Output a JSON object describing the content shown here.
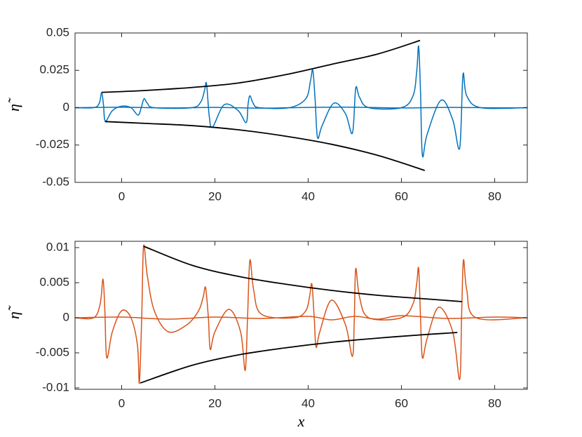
{
  "chart_data": [
    {
      "type": "line",
      "ylabel": "η̃",
      "xlim": [
        -10,
        87
      ],
      "ylim": [
        -0.05,
        0.05
      ],
      "xticks": [
        0,
        20,
        40,
        60,
        80
      ],
      "yticks": [
        -0.05,
        -0.025,
        0,
        0.025,
        0.05
      ],
      "series": [
        {
          "color": "#0072bd",
          "x": [
            -10,
            0,
            10,
            20,
            30,
            40,
            50,
            60,
            70,
            80,
            87
          ],
          "values": [
            0,
            0.0003,
            -0.0002,
            0.0002,
            -0.0003,
            0.0002,
            0.0003,
            -0.0002,
            0.0002,
            -0.0001,
            0
          ]
        },
        {
          "color": "#0072bd",
          "x": [
            -10,
            -6,
            -4.8,
            -4.3,
            -3.9,
            -3.5,
            -2,
            0,
            2,
            3.5,
            4.2,
            4.8,
            5.5,
            7,
            15,
            17,
            17.8,
            18.2,
            18.8,
            19.5,
            22,
            25,
            26.7,
            27.1,
            27.5,
            28.2,
            29.5,
            36,
            39.5,
            40.5,
            41,
            41.5,
            42,
            43,
            45.5,
            48,
            49.5,
            50.2,
            51,
            53,
            60,
            62.5,
            63.3,
            63.7,
            64.1,
            64.5,
            65.5,
            68.5,
            71,
            72.5,
            73.2,
            74,
            77,
            87
          ],
          "values": [
            0,
            0,
            0.003,
            0.01,
            0.002,
            -0.009,
            -0.002,
            0.001,
            0,
            -0.005,
            0,
            0.006,
            0.003,
            0,
            0,
            0.004,
            0.012,
            0.016,
            -0.006,
            -0.013,
            0.002,
            -0.002,
            -0.01,
            0.002,
            0.008,
            0.003,
            0,
            0,
            0.006,
            0.018,
            0.025,
            0.005,
            -0.02,
            -0.012,
            0.003,
            -0.004,
            -0.017,
            0.013,
            0.007,
            0,
            0,
            0.008,
            0.025,
            0.041,
            0.01,
            -0.032,
            -0.018,
            0.005,
            -0.008,
            -0.027,
            0.022,
            0.008,
            0,
            0
          ]
        },
        {
          "color": "#000000",
          "x": [
            -4.3,
            5,
            15,
            25,
            35,
            45,
            55,
            64
          ],
          "values": [
            0.0102,
            0.0115,
            0.0135,
            0.0165,
            0.022,
            0.029,
            0.036,
            0.045
          ]
        },
        {
          "color": "#000000",
          "x": [
            -3.6,
            5,
            15,
            25,
            35,
            45,
            55,
            65
          ],
          "values": [
            -0.0093,
            -0.0105,
            -0.012,
            -0.0148,
            -0.019,
            -0.0245,
            -0.032,
            -0.042
          ]
        }
      ]
    },
    {
      "type": "line",
      "ylabel": "η̃",
      "xlabel": "x",
      "xlim": [
        -10,
        87
      ],
      "ylim": [
        -0.0102,
        0.0109
      ],
      "xticks": [
        0,
        20,
        40,
        60,
        80
      ],
      "yticks": [
        -0.01,
        -0.005,
        0,
        0.005,
        0.01
      ],
      "series": [
        {
          "color": "#d95319",
          "x": [
            -10,
            0,
            10,
            20,
            30,
            40,
            45,
            50,
            55,
            60,
            70,
            80,
            87
          ],
          "values": [
            0,
            0.0001,
            -0.0002,
            0.0001,
            -0.0001,
            0.0002,
            -0.0003,
            0.0002,
            -0.0002,
            0.0003,
            -0.0001,
            0.0001,
            0
          ]
        },
        {
          "color": "#d95319",
          "x": [
            -10,
            -6,
            -4.6,
            -4,
            -3.6,
            -3.2,
            -2,
            0,
            2,
            3.4,
            3.8,
            4.3,
            4.7,
            5.5,
            7,
            10,
            14,
            16.5,
            17.5,
            18,
            18.6,
            19,
            20,
            23,
            25.5,
            26.5,
            27,
            27.5,
            28.3,
            30,
            37,
            39.5,
            40.3,
            40.8,
            41.3,
            41.7,
            42.5,
            45,
            48,
            49.5,
            49.9,
            50.2,
            51,
            53,
            60,
            62.5,
            63.3,
            63.7,
            64.1,
            64.5,
            65.5,
            68,
            71,
            72.5,
            72.9,
            73.3,
            74,
            76,
            87
          ],
          "values": [
            0,
            0,
            0.002,
            0.0055,
            0.001,
            -0.0057,
            -0.002,
            0.001,
            0,
            -0.004,
            -0.0093,
            0,
            0.0102,
            0.006,
            0.001,
            -0.002,
            -0.001,
            0.001,
            0.003,
            0.0043,
            0,
            -0.0045,
            -0.002,
            0.0012,
            -0.002,
            -0.0075,
            0,
            0.0082,
            0.004,
            0.0005,
            0,
            0.001,
            0.003,
            0.0048,
            0,
            -0.0042,
            -0.002,
            0.0025,
            -0.001,
            -0.0055,
            0,
            0.007,
            0.003,
            0,
            0,
            0.002,
            0.005,
            0.007,
            0,
            -0.0057,
            -0.003,
            0.0015,
            -0.002,
            -0.0088,
            0,
            0.0082,
            0.004,
            0,
            0
          ]
        },
        {
          "color": "#000000",
          "x": [
            4.7,
            15,
            25,
            35,
            45,
            55,
            65,
            73
          ],
          "values": [
            0.0102,
            0.0075,
            0.0059,
            0.0048,
            0.0039,
            0.0032,
            0.0027,
            0.0023
          ]
        },
        {
          "color": "#000000",
          "x": [
            4,
            15,
            25,
            35,
            45,
            55,
            65,
            72
          ],
          "values": [
            -0.0093,
            -0.0068,
            -0.0053,
            -0.0043,
            -0.0035,
            -0.0029,
            -0.0024,
            -0.0021
          ]
        }
      ]
    }
  ]
}
